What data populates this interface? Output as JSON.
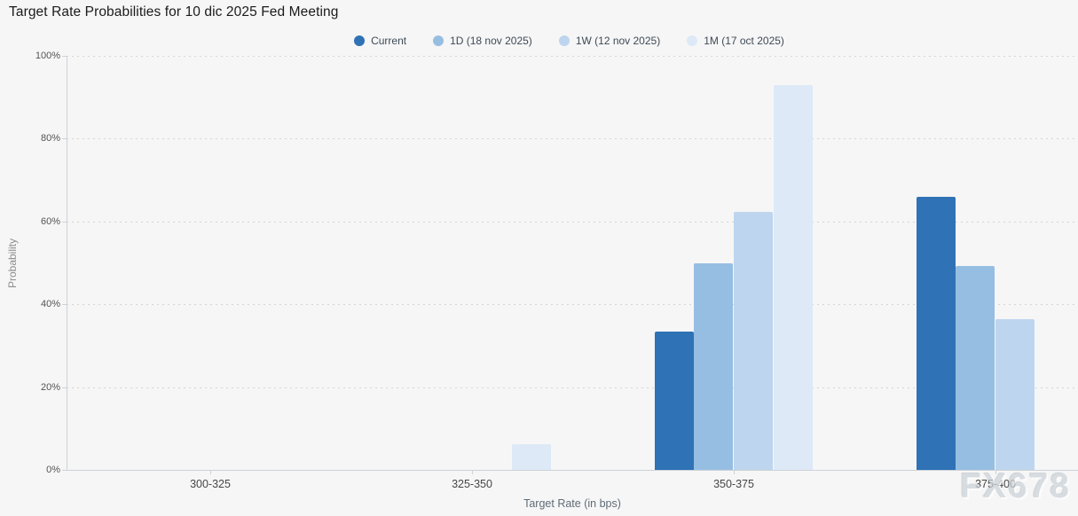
{
  "page": {
    "background": "#f6f6f6",
    "watermark": "FX678"
  },
  "header": {
    "title": "Target Rate Probabilities for 10 dic 2025 Fed Meeting"
  },
  "chart_data": {
    "type": "bar",
    "title": "Target Rate Probabilities for 10 dic 2025 Fed Meeting",
    "categories": [
      "300-325",
      "325-350",
      "350-375",
      "375-400"
    ],
    "series": [
      {
        "name": "Current",
        "color": "#2f72b5",
        "values": [
          null,
          null,
          33.3,
          65.9
        ]
      },
      {
        "name": "1D (18 nov 2025)",
        "color": "#96bee2",
        "values": [
          null,
          null,
          49.8,
          49.3
        ]
      },
      {
        "name": "1W (12 nov 2025)",
        "color": "#bdd5ee",
        "values": [
          null,
          null,
          62.3,
          36.5
        ]
      },
      {
        "name": "1M (17 oct 2025)",
        "color": "#dde9f6",
        "values": [
          null,
          6.2,
          92.9,
          null
        ]
      }
    ],
    "xlabel": "Target Rate (in bps)",
    "ylabel": "Probability",
    "ylim": [
      0,
      100
    ],
    "ytick_interval": 20,
    "ytick_labels": [
      "0%",
      "20%",
      "40%",
      "60%",
      "80%",
      "100%"
    ],
    "grid": "horizontal-dotted",
    "legend_position": "top-center"
  }
}
